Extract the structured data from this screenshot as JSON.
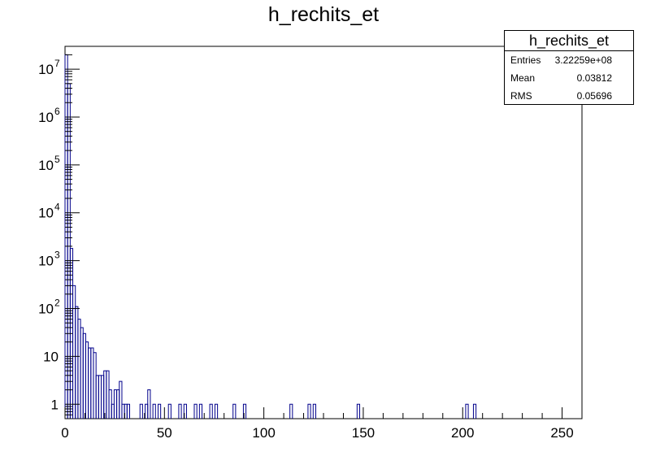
{
  "title": "h_rechits_et",
  "stats": {
    "title": "h_rechits_et",
    "rows": [
      {
        "key": "Entries",
        "value": "3.22259e+08"
      },
      {
        "key": "Mean",
        "value": "0.03812"
      },
      {
        "key": "RMS",
        "value": "0.05696"
      }
    ]
  },
  "colors": {
    "line": "#00008b",
    "axis": "#000000",
    "background": "#ffffff"
  },
  "chart_data": {
    "type": "histogram",
    "title": "h_rechits_et",
    "xlabel": "",
    "ylabel": "",
    "xlim": [
      0,
      260
    ],
    "ylim": [
      0.5,
      30000000
    ],
    "yscale": "log",
    "grid": false,
    "legend": "stats box top-right",
    "bin_width": 1.3,
    "x_ticks": [
      0,
      50,
      100,
      150,
      200,
      250
    ],
    "y_ticks": [
      {
        "value": 1,
        "label": "1"
      },
      {
        "value": 10,
        "label": "10"
      },
      {
        "value": 100,
        "label": "10",
        "exp": "2"
      },
      {
        "value": 1000,
        "label": "10",
        "exp": "3"
      },
      {
        "value": 10000,
        "label": "10",
        "exp": "4"
      },
      {
        "value": 100000,
        "label": "10",
        "exp": "5"
      },
      {
        "value": 1000000,
        "label": "10",
        "exp": "6"
      },
      {
        "value": 10000000,
        "label": "10",
        "exp": "7"
      }
    ],
    "bins": [
      [
        0.0,
        20000000
      ],
      [
        1.3,
        5000000
      ],
      [
        2.6,
        1800
      ],
      [
        3.9,
        300
      ],
      [
        5.2,
        110
      ],
      [
        6.5,
        60
      ],
      [
        7.8,
        40
      ],
      [
        9.1,
        30
      ],
      [
        10.4,
        20
      ],
      [
        11.7,
        15
      ],
      [
        13.0,
        15
      ],
      [
        14.3,
        12
      ],
      [
        15.6,
        4
      ],
      [
        16.9,
        4
      ],
      [
        18.2,
        4
      ],
      [
        19.5,
        5
      ],
      [
        20.8,
        5
      ],
      [
        22.1,
        2
      ],
      [
        23.4,
        1
      ],
      [
        24.7,
        2
      ],
      [
        26.0,
        2
      ],
      [
        27.3,
        3
      ],
      [
        28.6,
        1
      ],
      [
        29.9,
        1
      ],
      [
        31.2,
        1
      ],
      [
        37.7,
        1
      ],
      [
        40.3,
        1
      ],
      [
        41.6,
        2
      ],
      [
        44.2,
        1
      ],
      [
        46.8,
        1
      ],
      [
        52.0,
        1
      ],
      [
        57.2,
        1
      ],
      [
        59.8,
        1
      ],
      [
        65.0,
        1
      ],
      [
        67.6,
        1
      ],
      [
        72.8,
        1
      ],
      [
        75.4,
        1
      ],
      [
        84.5,
        1
      ],
      [
        89.7,
        1
      ],
      [
        113.1,
        1
      ],
      [
        122.2,
        1
      ],
      [
        124.8,
        1
      ],
      [
        146.9,
        1
      ],
      [
        201.5,
        1
      ],
      [
        205.4,
        1
      ]
    ]
  }
}
